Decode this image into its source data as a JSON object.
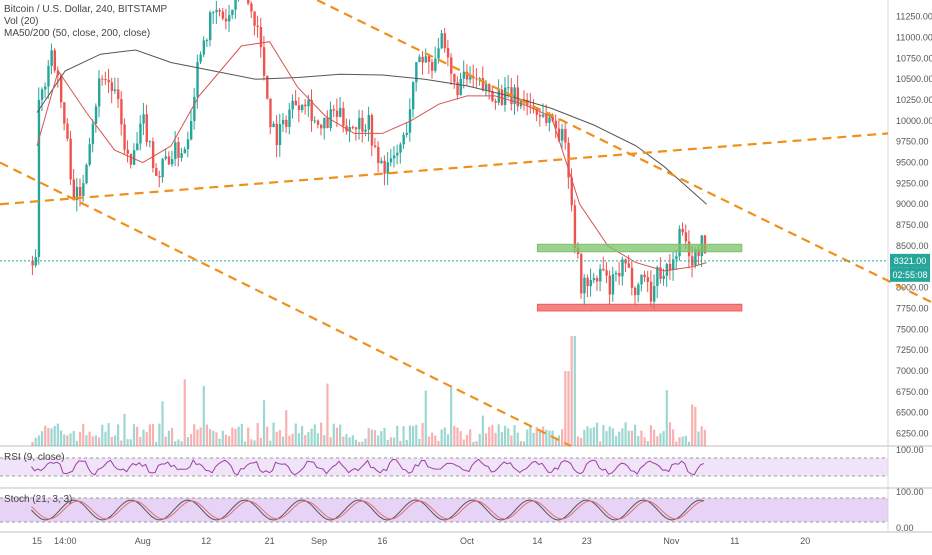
{
  "header": {
    "symbol": "Bitcoin / U.S. Dollar, 240, BITSTAMP",
    "volume": "Vol (20)",
    "ma": "MA50/200 (50, close, 200, close)"
  },
  "colors": {
    "up": "#26a69a",
    "down": "#ef5350",
    "trendline": "#f0901a",
    "ma50": "#d9534f",
    "ma200": "#555555",
    "support": "#f05a5a",
    "resistance": "#7cc26a",
    "price_tag": "#26a69a",
    "rsi_line": "#9b3fa7",
    "rsi_band": "#e9d2f3",
    "stoch_band": "#d7b5f0"
  },
  "chart_data": {
    "type": "line",
    "title": "Bitcoin / U.S. Dollar, 240, BITSTAMP",
    "x_ticks": [
      "15",
      "14:00",
      "Aug",
      "12",
      "21",
      "Sep",
      "16",
      "Oct",
      "14",
      "23",
      "Nov",
      "11",
      "20"
    ],
    "y_ticks": [
      6250,
      6500,
      6750,
      7000,
      7250,
      7500,
      7750,
      8000,
      8250,
      8500,
      8750,
      9000,
      9250,
      9500,
      9750,
      10000,
      10250,
      10500,
      10750,
      11000,
      11250
    ],
    "y_range": [
      6100,
      11450
    ],
    "x_range_days": [
      0,
      126
    ],
    "last_price": "8321.00",
    "countdown": "02:55:08",
    "price_path": [
      [
        1,
        10100
      ],
      [
        3,
        10900
      ],
      [
        5,
        9800
      ],
      [
        6,
        9150
      ],
      [
        7,
        9050
      ],
      [
        8,
        9700
      ],
      [
        10,
        10600
      ],
      [
        12,
        10300
      ],
      [
        14,
        9400
      ],
      [
        16,
        10000
      ],
      [
        18,
        9300
      ],
      [
        19,
        9550
      ],
      [
        22,
        9700
      ],
      [
        24,
        10900
      ],
      [
        26,
        11300
      ],
      [
        28,
        11200
      ],
      [
        30,
        11650
      ],
      [
        31,
        11350
      ],
      [
        32,
        11200
      ],
      [
        34,
        10000
      ],
      [
        35,
        9800
      ],
      [
        37,
        10200
      ],
      [
        39,
        10300
      ],
      [
        41,
        9850
      ],
      [
        43,
        10100
      ],
      [
        45,
        9950
      ],
      [
        48,
        10000
      ],
      [
        49,
        9500
      ],
      [
        51,
        9450
      ],
      [
        53,
        9800
      ],
      [
        55,
        10800
      ],
      [
        57,
        10700
      ],
      [
        58,
        11000
      ],
      [
        60,
        10400
      ],
      [
        62,
        10500
      ],
      [
        64,
        10400
      ],
      [
        67,
        10300
      ],
      [
        70,
        10250
      ],
      [
        72,
        10100
      ],
      [
        74,
        10000
      ],
      [
        76,
        9700
      ],
      [
        77,
        8700
      ],
      [
        78,
        8000
      ],
      [
        79,
        8100
      ],
      [
        80,
        8000
      ],
      [
        81,
        8250
      ],
      [
        82,
        7950
      ],
      [
        84,
        8250
      ],
      [
        86,
        8000
      ],
      [
        87,
        8200
      ],
      [
        88,
        7900
      ],
      [
        89,
        8200
      ],
      [
        91,
        8250
      ],
      [
        92,
        8650
      ],
      [
        93,
        8500
      ],
      [
        94,
        8300
      ],
      [
        95,
        8550
      ],
      [
        96,
        8321
      ]
    ],
    "ma50_path": [
      [
        1,
        9700
      ],
      [
        4,
        10600
      ],
      [
        8,
        10100
      ],
      [
        12,
        9650
      ],
      [
        16,
        9500
      ],
      [
        20,
        9700
      ],
      [
        24,
        10300
      ],
      [
        30,
        10900
      ],
      [
        34,
        10950
      ],
      [
        38,
        10400
      ],
      [
        42,
        10050
      ],
      [
        46,
        9850
      ],
      [
        50,
        9850
      ],
      [
        54,
        10000
      ],
      [
        58,
        10200
      ],
      [
        62,
        10300
      ],
      [
        66,
        10300
      ],
      [
        70,
        10200
      ],
      [
        74,
        10050
      ],
      [
        78,
        9000
      ],
      [
        82,
        8500
      ],
      [
        86,
        8300
      ],
      [
        90,
        8200
      ],
      [
        94,
        8250
      ],
      [
        96,
        8300
      ]
    ],
    "ma200_path": [
      [
        1,
        10100
      ],
      [
        5,
        10600
      ],
      [
        10,
        10800
      ],
      [
        15,
        10850
      ],
      [
        20,
        10700
      ],
      [
        26,
        10600
      ],
      [
        32,
        10500
      ],
      [
        38,
        10520
      ],
      [
        44,
        10560
      ],
      [
        50,
        10550
      ],
      [
        56,
        10500
      ],
      [
        62,
        10420
      ],
      [
        68,
        10300
      ],
      [
        74,
        10150
      ],
      [
        80,
        9950
      ],
      [
        86,
        9700
      ],
      [
        90,
        9450
      ],
      [
        94,
        9150
      ],
      [
        96,
        9000
      ]
    ],
    "trendlines": [
      [
        [
          0,
          9000
        ],
        [
          126,
          9850
        ]
      ],
      [
        [
          45,
          11450
        ],
        [
          140,
          7500
        ]
      ],
      [
        [
          0,
          9500
        ],
        [
          81,
          6100
        ]
      ]
    ],
    "zones": [
      {
        "name": "resistance",
        "from": 8430,
        "to": 8520,
        "x0": 72,
        "x1": 101
      },
      {
        "name": "support",
        "from": 7720,
        "to": 7800,
        "x0": 72,
        "x1": 101
      }
    ],
    "volume_range": [
      0,
      100
    ],
    "rsi": {
      "label": "RSI (9, close)",
      "ticks": [
        "100.00"
      ],
      "upper": 70,
      "lower": 30
    },
    "stoch": {
      "label": "Stoch (21, 3, 3)",
      "ticks": [
        "100.00",
        "0.00"
      ],
      "upper": 80,
      "lower": 20
    }
  }
}
